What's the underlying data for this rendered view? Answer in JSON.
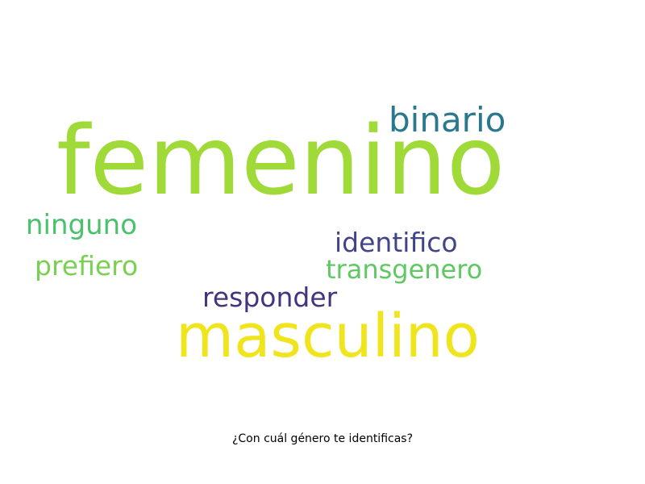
{
  "words": {
    "femenino": {
      "text": "femenino",
      "color": "#a0da39"
    },
    "masculino": {
      "text": "masculino",
      "color": "#f0e51d"
    },
    "binario": {
      "text": "binario",
      "color": "#2a788e"
    },
    "ninguno": {
      "text": "ninguno",
      "color": "#4ac16d"
    },
    "identifico": {
      "text": "identifico",
      "color": "#414487"
    },
    "prefiero": {
      "text": "prefiero",
      "color": "#7ad151"
    },
    "transgenero": {
      "text": "transgenero",
      "color": "#5ec962"
    },
    "responder": {
      "text": "responder",
      "color": "#46337e"
    }
  },
  "caption": "¿Con cuál género te identificas?"
}
